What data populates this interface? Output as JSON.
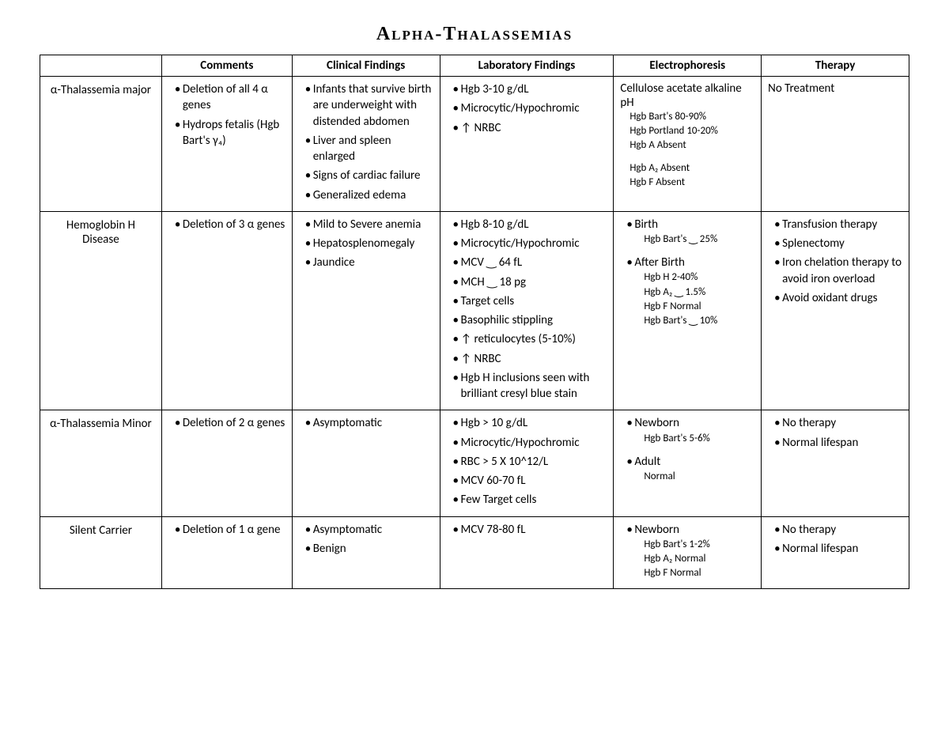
{
  "title": "Alpha-Thalassemias",
  "headers": {
    "c0": "",
    "c1": "Comments",
    "c2": "Clinical Findings",
    "c3": "Laboratory Findings",
    "c4": "Electrophoresis",
    "c5": "Therapy"
  },
  "rows": {
    "r0": {
      "name": "α-Thalassemia major",
      "comments": {
        "i0": "Deletion of all 4 α genes",
        "i1": "Hydrops fetalis (Hgb Bart's γ₄)"
      },
      "clinical": {
        "i0": "Infants that survive birth are underweight with distended abdomen",
        "i1": "Liver and spleen enlarged",
        "i2": "Signs of cardiac failure",
        "i3": "Generalized edema"
      },
      "lab": {
        "i0": "Hgb 3-10 g/dL",
        "i1": "Microcytic/Hypochromic",
        "i2": "NRBC"
      },
      "electro": {
        "heading": "Cellulose acetate alkaline pH",
        "s0": "Hgb Bart's   80-90%",
        "s1": "Hgb Portland 10-20%",
        "s2": "Hgb A   Absent",
        "s3": "Hgb A₂   Absent",
        "s4": "Hgb F    Absent"
      },
      "therapy": "No Treatment"
    },
    "r1": {
      "name": "Hemoglobin H Disease",
      "comments": {
        "i0": "Deletion of 3 α genes"
      },
      "clinical": {
        "i0": "Mild to Severe anemia",
        "i1": "Hepatosplenomegaly",
        "i2": "Jaundice"
      },
      "lab": {
        "i0": "Hgb 8-10 g/dL",
        "i1": "Microcytic/Hypochromic",
        "i2": "MCV ‿ 64 fL",
        "i3": "MCH ‿ 18 pg",
        "i4": "Target cells",
        "i5": "Basophilic stippling",
        "i6": "reticulocytes (5-10%)",
        "i7": "NRBC",
        "i8": "Hgb H  inclusions seen with brilliant cresyl blue stain"
      },
      "electro": {
        "g0_label": "Birth",
        "g0_s0": "Hgb Bart's ‿ 25%",
        "g1_label": "After Birth",
        "g1_s0": "Hgb H   2-40%",
        "g1_s1": "Hgb A₂ ‿ 1.5%",
        "g1_s2": "Hgb F   Normal",
        "g1_s3": "Hgb Bart's ‿ 10%"
      },
      "therapy": {
        "i0": "Transfusion therapy",
        "i1": "Splenectomy",
        "i2": "Iron chelation therapy to avoid iron overload",
        "i3": "Avoid oxidant drugs"
      }
    },
    "r2": {
      "name": "α-Thalassemia Minor",
      "comments": {
        "i0": "Deletion of 2 α genes"
      },
      "clinical": {
        "i0": "Asymptomatic"
      },
      "lab": {
        "i0": "Hgb > 10 g/dL",
        "i1": "Microcytic/Hypochromic",
        "i2": "RBC > 5 X 10^12/L",
        "i3": "MCV 60-70 fL",
        "i4": "Few Target cells"
      },
      "electro": {
        "g0_label": "Newborn",
        "g0_s0": "Hgb Bart's   5-6%",
        "g1_label": "Adult",
        "g1_s0": "Normal"
      },
      "therapy": {
        "i0": "No therapy",
        "i1": "Normal lifespan"
      }
    },
    "r3": {
      "name": "Silent Carrier",
      "comments": {
        "i0": "Deletion of 1 α gene"
      },
      "clinical": {
        "i0": "Asymptomatic",
        "i1": "Benign"
      },
      "lab": {
        "i0": "MCV 78-80 fL"
      },
      "electro": {
        "g0_label": "Newborn",
        "g0_s0": "Hgb Bart's   1-2%",
        "g0_s1": "Hgb A₂   Normal",
        "g0_s2": "Hgb F     Normal"
      },
      "therapy": {
        "i0": "No therapy",
        "i1": "Normal lifespan"
      }
    }
  }
}
